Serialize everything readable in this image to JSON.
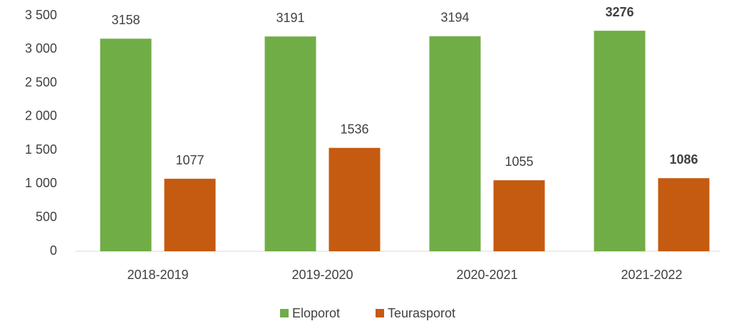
{
  "chart_data": {
    "type": "bar",
    "categories": [
      "2018-2019",
      "2019-2020",
      "2020-2021",
      "2021-2022"
    ],
    "series": [
      {
        "name": "Eloporot",
        "color": "#70ad47",
        "values": [
          3158,
          3191,
          3194,
          3276
        ]
      },
      {
        "name": "Teurasporot",
        "color": "#c55a11",
        "values": [
          1077,
          1536,
          1055,
          1086
        ]
      }
    ],
    "ylim": [
      0,
      3500
    ],
    "yticks": [
      0,
      500,
      {
        "value": 1000,
        "label": "1 000"
      },
      {
        "value": 1500,
        "label": "1 500"
      },
      {
        "value": 2000,
        "label": "2 000"
      },
      {
        "value": 2500,
        "label": "2 500"
      },
      {
        "value": 3000,
        "label": "3 000"
      },
      {
        "value": 3500,
        "label": "3 500"
      }
    ],
    "grid": false,
    "legend": "bottom",
    "highlight": 3
  }
}
